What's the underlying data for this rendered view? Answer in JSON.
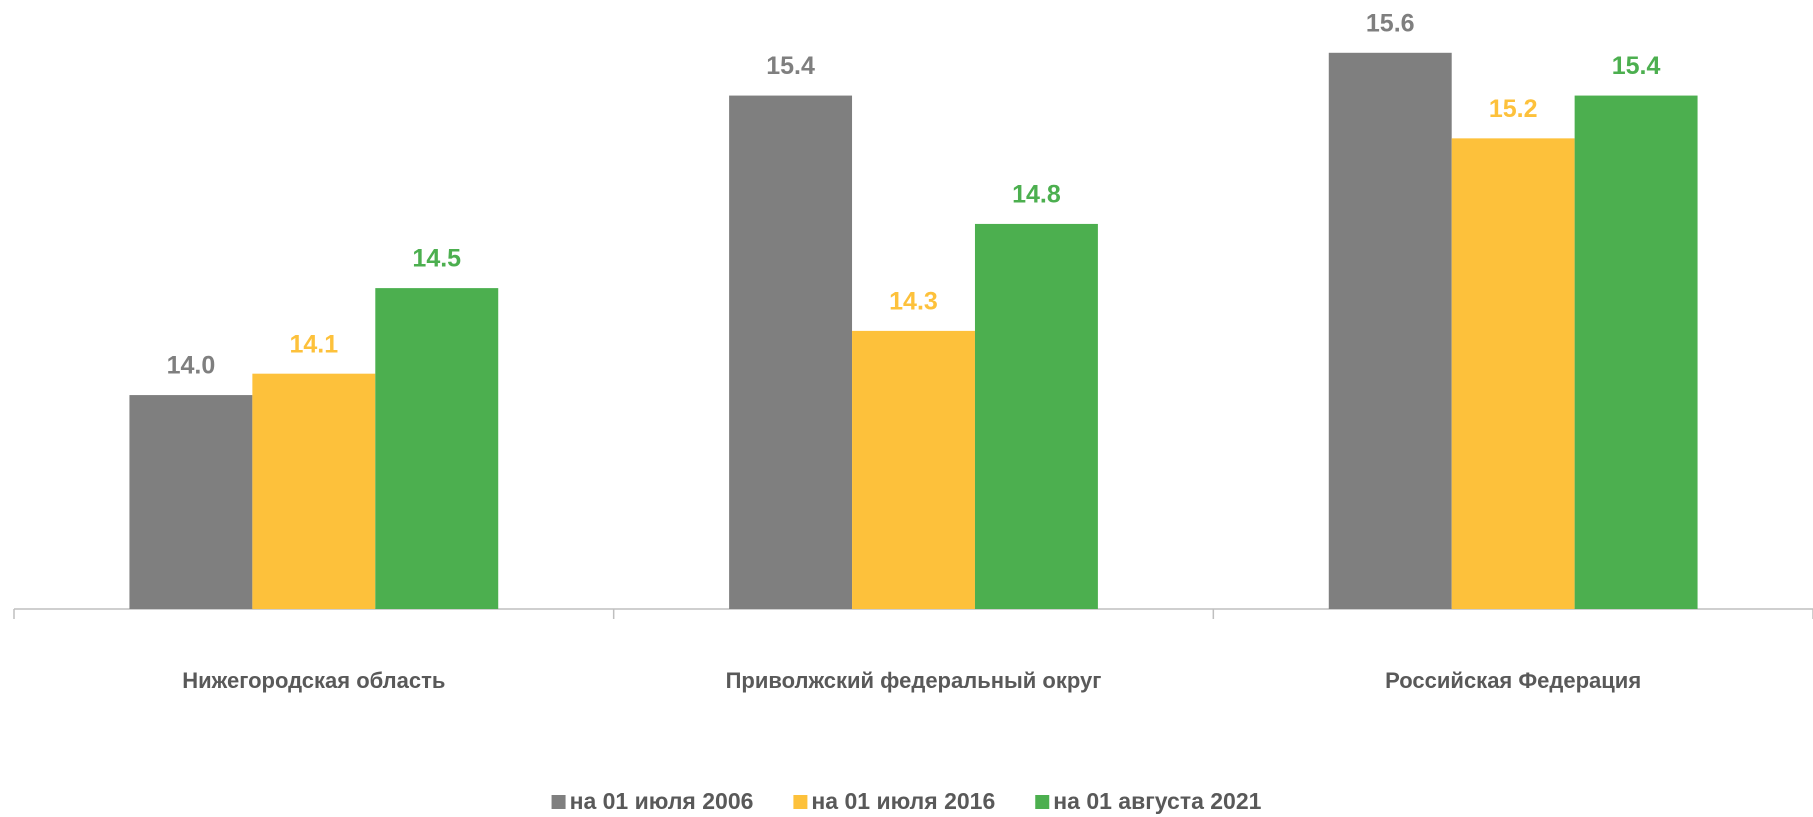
{
  "chart_data": {
    "type": "bar",
    "categories": [
      "Нижегородская область",
      "Приволжский федеральный округ",
      "Российская Федерация"
    ],
    "series": [
      {
        "name": "на 01 июля 2006",
        "color": "#7f7f7f",
        "values": [
          14.0,
          15.4,
          15.6
        ],
        "value_labels": [
          "14.0",
          "15.4",
          "15.6"
        ]
      },
      {
        "name": "на 01 июля 2016",
        "color": "#fdc13b",
        "values": [
          14.1,
          14.3,
          15.2
        ],
        "value_labels": [
          "14.1",
          "14.3",
          "15.2"
        ]
      },
      {
        "name": "на 01 августа 2021",
        "color": "#4caf4f",
        "values": [
          14.5,
          14.8,
          15.4
        ],
        "value_labels": [
          "14.5",
          "14.8",
          "15.4"
        ]
      }
    ],
    "ylim": [
      13,
      15.8
    ],
    "grid": false,
    "legend": "bottom"
  }
}
